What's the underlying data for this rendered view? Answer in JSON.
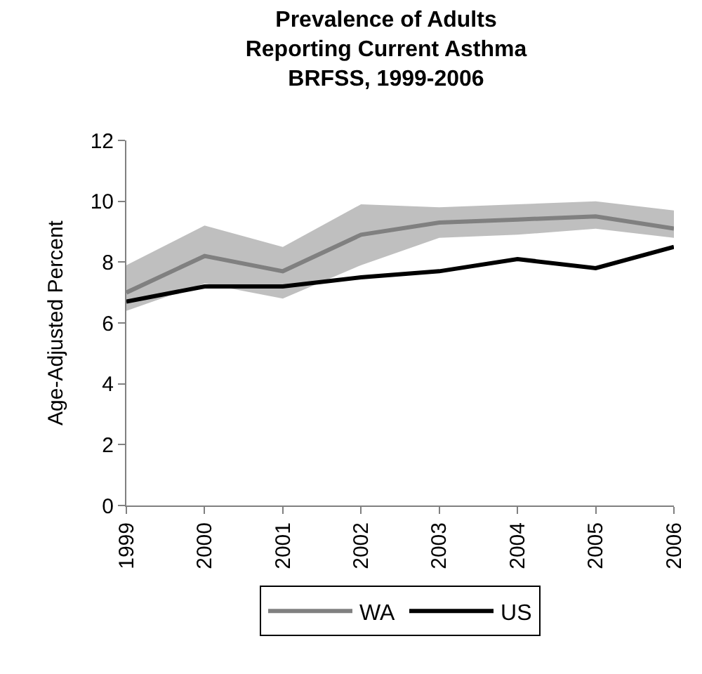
{
  "chart_data": {
    "type": "line",
    "title": "Prevalence of Adults\nReporting Current Asthma\nBRFSS, 1999-2006",
    "ylabel": "Age-Adjusted Percent",
    "categories": [
      "1999",
      "2000",
      "2001",
      "2002",
      "2003",
      "2004",
      "2005",
      "2006"
    ],
    "series": [
      {
        "name": "WA",
        "color": "#808080",
        "values": [
          7.0,
          8.2,
          7.7,
          8.9,
          9.3,
          9.4,
          9.5,
          9.1
        ],
        "lower": [
          6.4,
          7.3,
          6.8,
          7.9,
          8.8,
          8.9,
          9.1,
          8.8
        ],
        "upper": [
          7.9,
          9.2,
          8.5,
          9.9,
          9.8,
          9.9,
          10.0,
          9.7
        ]
      },
      {
        "name": "US",
        "color": "#000000",
        "values": [
          6.7,
          7.2,
          7.2,
          7.5,
          7.7,
          8.1,
          7.8,
          8.5
        ]
      }
    ],
    "ylim": [
      0,
      12
    ],
    "yticks": [
      0,
      2,
      4,
      6,
      8,
      10,
      12
    ],
    "grid": false,
    "legend": "bottom",
    "marker": "none",
    "line_style": "solid"
  }
}
